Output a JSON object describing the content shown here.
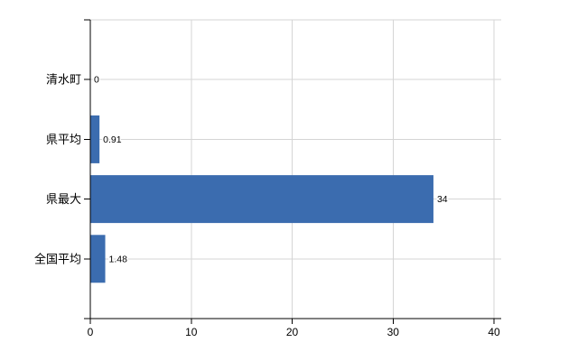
{
  "chart": {
    "background_color": "#FFFFFF"
  },
  "chart_data": {
    "type": "bar",
    "orientation": "horizontal",
    "title": "",
    "xlabel": "",
    "ylabel": "",
    "categories": [
      "清水町",
      "県平均",
      "県最大",
      "全国平均"
    ],
    "values": [
      0,
      0.91,
      34,
      1.48
    ],
    "value_labels": [
      "0",
      "0.91",
      "34",
      "1.48"
    ],
    "xlim": [
      0,
      40
    ],
    "xticks": [
      0,
      10,
      20,
      30,
      40
    ],
    "xtick_labels": [
      "0",
      "10",
      "20",
      "30",
      "40"
    ],
    "grid": true,
    "legend": false,
    "colors": {
      "bar": "#3B6CAF",
      "grid": "#D5D5D5",
      "axis": "#000000",
      "text": "#000000"
    }
  }
}
